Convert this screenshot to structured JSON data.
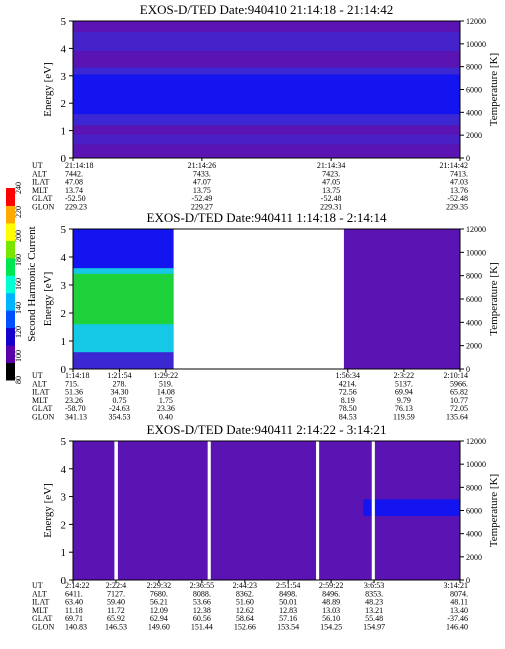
{
  "colors": {
    "background": "#5a14b4",
    "band_blue": "#1414f0",
    "band_mid": "#3c28d2",
    "green": "#1ed23c",
    "cyan": "#14c8e6",
    "stripe": "#ffffff",
    "colorbar": [
      "#000000",
      "#5a00aa",
      "#1400c8",
      "#0050ff",
      "#00b4ff",
      "#00ffd2",
      "#00e650",
      "#78e600",
      "#ffff00",
      "#ffaa00",
      "#ff0000"
    ]
  },
  "colorbar": {
    "label": "Second Harmonic Current",
    "ticks": [
      "80",
      "100",
      "120",
      "140",
      "160",
      "180",
      "200",
      "220",
      "240"
    ],
    "range": [
      80,
      240
    ]
  },
  "chart_data": [
    {
      "type": "heatmap",
      "title": "EXOS-D/TED   Date:940410  21:14:18 - 21:14:42",
      "ylabel": "Energy [eV]",
      "ylabel_right": "Temperature [K]",
      "ylim": [
        0,
        5
      ],
      "y_ticks": [
        "0",
        "1",
        "2",
        "3",
        "4",
        "5"
      ],
      "ylim_right": [
        0,
        12000
      ],
      "y_ticks_right": [
        "0",
        "2000",
        "4000",
        "6000",
        "8000",
        "10000",
        "12000"
      ],
      "row_labels": [
        "UT",
        "ALT",
        "ILAT",
        "MLT",
        "GLAT",
        "GLON"
      ],
      "columns": [
        {
          "frac": 0.0,
          "values": [
            "21:14:18",
            "7442.",
            "47.08",
            "13.74",
            "-52.50",
            "229.23"
          ]
        },
        {
          "frac": 0.333,
          "values": [
            "21:14:26",
            "7433.",
            "47.07",
            "13.75",
            "-52.49",
            "229.27"
          ]
        },
        {
          "frac": 0.667,
          "values": [
            "21:14:34",
            "7423.",
            "47.05",
            "13.75",
            "-52.48",
            "229.31"
          ]
        },
        {
          "frac": 1.0,
          "values": [
            "21:14:42",
            "7413.",
            "47.03",
            "13.76",
            "-52.48",
            "229.35"
          ]
        }
      ],
      "gaps": []
    },
    {
      "type": "heatmap",
      "title": "EXOS-D/TED   Date:940411  1:14:18 - 2:14:14",
      "ylabel": "Energy [eV]",
      "ylabel_right": "Temperature [K]",
      "ylim": [
        0,
        5
      ],
      "y_ticks": [
        "0",
        "1",
        "2",
        "3",
        "4",
        "5"
      ],
      "ylim_right": [
        0,
        12000
      ],
      "y_ticks_right": [
        "0",
        "2000",
        "4000",
        "6000",
        "8000",
        "10000",
        "12000"
      ],
      "row_labels": [
        "UT",
        "ALT",
        "ILAT",
        "MLT",
        "GLAT",
        "GLON"
      ],
      "columns": [
        {
          "frac": 0.0,
          "values": [
            "1:14:18",
            "715.",
            "51.36",
            "23.26",
            "-58.70",
            "341.13"
          ]
        },
        {
          "frac": 0.12,
          "values": [
            "1:21:54",
            "278.",
            "34.30",
            "0.75",
            "-24.63",
            "354.53"
          ]
        },
        {
          "frac": 0.24,
          "values": [
            "1:29:22",
            "519.",
            "14.08",
            "1.75",
            "23.36",
            "0.40"
          ]
        },
        {
          "frac": 0.71,
          "values": [
            "1:56:34",
            "4214.",
            "72.56",
            "8.19",
            "78.50",
            "84.53"
          ]
        },
        {
          "frac": 0.855,
          "values": [
            "2:3:22",
            "5137.",
            "69.94",
            "9.79",
            "76.13",
            "119.59"
          ]
        },
        {
          "frac": 1.0,
          "values": [
            "2:10:14",
            "5966.",
            "65.82",
            "10.77",
            "72.05",
            "135.64"
          ]
        }
      ],
      "gaps": [
        [
          0.26,
          0.7
        ]
      ]
    },
    {
      "type": "heatmap",
      "title": "EXOS-D/TED   Date:940411  2:14:22 - 3:14:21",
      "ylabel": "Energy [eV]",
      "ylabel_right": "Temperature [K]",
      "ylim": [
        0,
        5
      ],
      "y_ticks": [
        "0",
        "1",
        "2",
        "3",
        "4",
        "5"
      ],
      "ylim_right": [
        0,
        12000
      ],
      "y_ticks_right": [
        "0",
        "2000",
        "4000",
        "6000",
        "8000",
        "10000",
        "12000"
      ],
      "row_labels": [
        "UT",
        "ALT",
        "ILAT",
        "MLT",
        "GLAT",
        "GLON"
      ],
      "columns": [
        {
          "frac": 0.0,
          "values": [
            "2:14:22",
            "6411.",
            "63.40",
            "11.18",
            "69.71",
            "140.83"
          ]
        },
        {
          "frac": 0.111,
          "values": [
            "2:22:4",
            "7127.",
            "59.40",
            "11.72",
            "65.92",
            "146.53"
          ]
        },
        {
          "frac": 0.222,
          "values": [
            "2:29:32",
            "7680.",
            "56.21",
            "12.09",
            "62.94",
            "149.60"
          ]
        },
        {
          "frac": 0.333,
          "values": [
            "2:36:55",
            "8088.",
            "53.66",
            "12.38",
            "60.56",
            "151.44"
          ]
        },
        {
          "frac": 0.444,
          "values": [
            "2:44:23",
            "8362.",
            "51.60",
            "12.62",
            "58.64",
            "152.66"
          ]
        },
        {
          "frac": 0.556,
          "values": [
            "2:51:54",
            "8498.",
            "50.01",
            "12.83",
            "57.16",
            "153.54"
          ]
        },
        {
          "frac": 0.667,
          "values": [
            "2:59:22",
            "8496.",
            "48.89",
            "13.03",
            "56.10",
            "154.25"
          ]
        },
        {
          "frac": 0.778,
          "values": [
            "3:6:53",
            "8353.",
            "48.23",
            "13.21",
            "55.48",
            "154.97"
          ]
        },
        {
          "frac": 1.0,
          "values": [
            "3:14:21",
            "8074.",
            "48.11",
            "13.40",
            "-37.46",
            "146.40"
          ]
        }
      ],
      "gaps": [
        [
          0.107,
          0.116
        ],
        [
          0.348,
          0.356
        ],
        [
          0.628,
          0.636
        ],
        [
          0.772,
          0.78
        ]
      ]
    }
  ]
}
